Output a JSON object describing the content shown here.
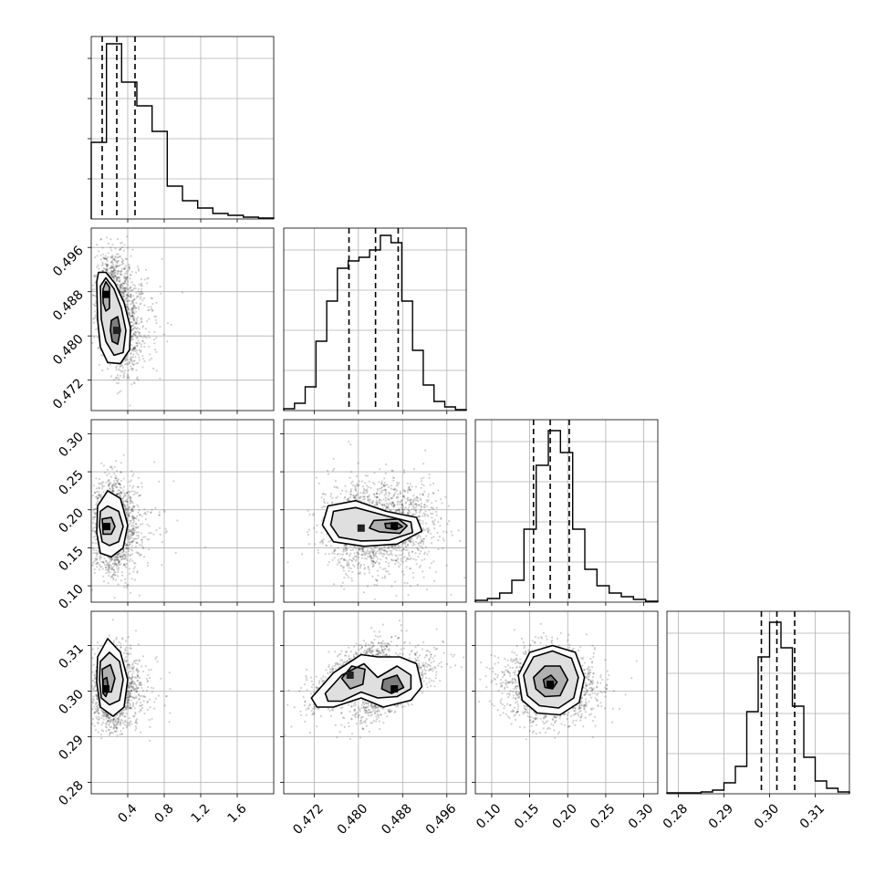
{
  "chart_data": {
    "type": "corner",
    "grid": true,
    "parameters": [
      {
        "ticks": [
          0.4,
          0.8,
          1.2,
          1.6
        ],
        "tick_labels": [
          "0.4",
          "0.8",
          "1.2",
          "1.6"
        ],
        "range": [
          0.0,
          2.0
        ],
        "quantiles": [
          0.12,
          0.28,
          0.48
        ],
        "hist": [
          0.42,
          0.96,
          0.75,
          0.62,
          0.48,
          0.18,
          0.1,
          0.06,
          0.03,
          0.02,
          0.01,
          0.005
        ]
      },
      {
        "ticks": [
          0.472,
          0.48,
          0.488,
          0.496
        ],
        "tick_labels": [
          "0.472",
          "0.480",
          "0.488",
          "0.496"
        ],
        "range": [
          0.4665,
          0.4995
        ],
        "quantiles": [
          0.4783,
          0.4831,
          0.4872
        ],
        "hist": [
          0.01,
          0.04,
          0.13,
          0.38,
          0.6,
          0.78,
          0.82,
          0.84,
          0.88,
          0.96,
          0.92,
          0.6,
          0.33,
          0.14,
          0.05,
          0.02,
          0.005
        ]
      },
      {
        "ticks": [
          0.1,
          0.15,
          0.2,
          0.25,
          0.3
        ],
        "tick_labels": [
          "0.10",
          "0.15",
          "0.20",
          "0.25",
          "0.30"
        ],
        "range": [
          0.0785,
          0.3185
        ],
        "quantiles": [
          0.155,
          0.177,
          0.202
        ],
        "hist": [
          0.01,
          0.02,
          0.05,
          0.12,
          0.4,
          0.75,
          0.94,
          0.82,
          0.4,
          0.18,
          0.09,
          0.05,
          0.03,
          0.015,
          0.005
        ]
      },
      {
        "ticks": [
          0.28,
          0.29,
          0.3,
          0.31
        ],
        "tick_labels": [
          "0.28",
          "0.29",
          "0.30",
          "0.31"
        ],
        "range": [
          0.2775,
          0.3175
        ],
        "quantiles": [
          0.2982,
          0.3016,
          0.3055
        ],
        "hist": [
          0.005,
          0.005,
          0.005,
          0.01,
          0.02,
          0.06,
          0.15,
          0.45,
          0.75,
          0.94,
          0.8,
          0.48,
          0.2,
          0.07,
          0.03,
          0.01
        ]
      }
    ],
    "panels": [
      {
        "row": 1,
        "col": 0,
        "spread": [
          0.13,
          0.004
        ],
        "modes": [
          {
            "x": 0.16,
            "y": 0.4875,
            "w": 1.0
          },
          {
            "x": 0.28,
            "y": 0.481,
            "w": 0.65
          }
        ],
        "contours": [
          [
            [
              0.06,
              0.4898
            ],
            [
              0.08,
              0.4915
            ],
            [
              0.16,
              0.4915
            ],
            [
              0.26,
              0.4895
            ],
            [
              0.36,
              0.486
            ],
            [
              0.43,
              0.4815
            ],
            [
              0.42,
              0.4775
            ],
            [
              0.32,
              0.475
            ],
            [
              0.18,
              0.4752
            ],
            [
              0.1,
              0.478
            ],
            [
              0.07,
              0.483
            ]
          ],
          [
            [
              0.1,
              0.489
            ],
            [
              0.16,
              0.4905
            ],
            [
              0.25,
              0.4885
            ],
            [
              0.33,
              0.485
            ],
            [
              0.38,
              0.481
            ],
            [
              0.35,
              0.477
            ],
            [
              0.25,
              0.4765
            ],
            [
              0.16,
              0.479
            ],
            [
              0.11,
              0.483
            ]
          ],
          [
            [
              0.13,
              0.4885
            ],
            [
              0.16,
              0.4898
            ],
            [
              0.2,
              0.4888
            ],
            [
              0.2,
              0.485
            ],
            [
              0.16,
              0.4845
            ],
            [
              0.13,
              0.486
            ]
          ],
          [
            [
              0.22,
              0.4828
            ],
            [
              0.29,
              0.4835
            ],
            [
              0.32,
              0.481
            ],
            [
              0.29,
              0.4785
            ],
            [
              0.23,
              0.479
            ],
            [
              0.21,
              0.481
            ]
          ]
        ]
      },
      {
        "row": 2,
        "col": 0,
        "spread": [
          0.14,
          0.03
        ],
        "modes": [
          {
            "x": 0.17,
            "y": 0.178,
            "w": 1.0
          }
        ],
        "contours": [
          [
            [
              0.07,
              0.205
            ],
            [
              0.18,
              0.225
            ],
            [
              0.32,
              0.215
            ],
            [
              0.4,
              0.18
            ],
            [
              0.35,
              0.15
            ],
            [
              0.22,
              0.138
            ],
            [
              0.1,
              0.143
            ],
            [
              0.06,
              0.17
            ]
          ],
          [
            [
              0.1,
              0.198
            ],
            [
              0.18,
              0.205
            ],
            [
              0.3,
              0.198
            ],
            [
              0.35,
              0.178
            ],
            [
              0.3,
              0.158
            ],
            [
              0.2,
              0.153
            ],
            [
              0.12,
              0.158
            ],
            [
              0.09,
              0.178
            ]
          ],
          [
            [
              0.12,
              0.188
            ],
            [
              0.22,
              0.19
            ],
            [
              0.26,
              0.178
            ],
            [
              0.22,
              0.168
            ],
            [
              0.13,
              0.168
            ]
          ]
        ]
      },
      {
        "row": 2,
        "col": 1,
        "spread": [
          0.004,
          0.03
        ],
        "modes": [
          {
            "x": 0.4865,
            "y": 0.179,
            "w": 1.0
          },
          {
            "x": 0.4805,
            "y": 0.176,
            "w": 0.55
          }
        ],
        "contours": [
          [
            [
              0.4745,
              0.205
            ],
            [
              0.4795,
              0.212
            ],
            [
              0.485,
              0.198
            ],
            [
              0.4905,
              0.19
            ],
            [
              0.4915,
              0.172
            ],
            [
              0.487,
              0.155
            ],
            [
              0.481,
              0.152
            ],
            [
              0.4755,
              0.158
            ],
            [
              0.4735,
              0.18
            ]
          ],
          [
            [
              0.4755,
              0.198
            ],
            [
              0.4795,
              0.203
            ],
            [
              0.485,
              0.192
            ],
            [
              0.4895,
              0.184
            ],
            [
              0.4898,
              0.17
            ],
            [
              0.4855,
              0.16
            ],
            [
              0.4805,
              0.159
            ],
            [
              0.4765,
              0.164
            ],
            [
              0.475,
              0.18
            ]
          ],
          [
            [
              0.4828,
              0.186
            ],
            [
              0.4872,
              0.188
            ],
            [
              0.4888,
              0.179
            ],
            [
              0.4875,
              0.169
            ],
            [
              0.4838,
              0.171
            ],
            [
              0.482,
              0.176
            ]
          ],
          [
            [
              0.4848,
              0.182
            ],
            [
              0.487,
              0.183
            ],
            [
              0.488,
              0.178
            ],
            [
              0.4868,
              0.174
            ],
            [
              0.485,
              0.176
            ]
          ]
        ]
      },
      {
        "row": 3,
        "col": 0,
        "spread": [
          0.14,
          0.004
        ],
        "modes": [
          {
            "x": 0.16,
            "y": 0.3005,
            "w": 1.0
          }
        ],
        "contours": [
          [
            [
              0.07,
              0.3075
            ],
            [
              0.18,
              0.3115
            ],
            [
              0.32,
              0.3085
            ],
            [
              0.4,
              0.3025
            ],
            [
              0.36,
              0.2965
            ],
            [
              0.24,
              0.2945
            ],
            [
              0.1,
              0.2965
            ],
            [
              0.06,
              0.302
            ]
          ],
          [
            [
              0.1,
              0.3065
            ],
            [
              0.2,
              0.3085
            ],
            [
              0.31,
              0.3065
            ],
            [
              0.35,
              0.3025
            ],
            [
              0.31,
              0.298
            ],
            [
              0.2,
              0.297
            ],
            [
              0.11,
              0.2985
            ],
            [
              0.09,
              0.3025
            ]
          ],
          [
            [
              0.12,
              0.3048
            ],
            [
              0.21,
              0.3058
            ],
            [
              0.26,
              0.3028
            ],
            [
              0.22,
              0.2998
            ],
            [
              0.13,
              0.2998
            ]
          ],
          [
            [
              0.13,
              0.3025
            ],
            [
              0.17,
              0.303
            ],
            [
              0.19,
              0.3005
            ],
            [
              0.16,
              0.2988
            ],
            [
              0.13,
              0.2995
            ]
          ]
        ]
      },
      {
        "row": 3,
        "col": 1,
        "spread": [
          0.0038,
          0.0038
        ],
        "corr": 0.75,
        "modes": [
          {
            "x": 0.4865,
            "y": 0.3005,
            "w": 1.0
          },
          {
            "x": 0.4785,
            "y": 0.3035,
            "w": 0.8
          }
        ],
        "contours": [
          [
            [
              0.4715,
              0.2985
            ],
            [
              0.4755,
              0.304
            ],
            [
              0.4805,
              0.308
            ],
            [
              0.4835,
              0.3075
            ],
            [
              0.4875,
              0.3075
            ],
            [
              0.4905,
              0.306
            ],
            [
              0.4915,
              0.301
            ],
            [
              0.4895,
              0.298
            ],
            [
              0.4845,
              0.2965
            ],
            [
              0.4805,
              0.2985
            ],
            [
              0.4755,
              0.2965
            ],
            [
              0.4725,
              0.2965
            ]
          ],
          [
            [
              0.474,
              0.2995
            ],
            [
              0.477,
              0.3035
            ],
            [
              0.481,
              0.306
            ],
            [
              0.4835,
              0.303
            ],
            [
              0.487,
              0.3055
            ],
            [
              0.4895,
              0.3035
            ],
            [
              0.4895,
              0.3005
            ],
            [
              0.487,
              0.2988
            ],
            [
              0.4835,
              0.2985
            ],
            [
              0.4805,
              0.2998
            ],
            [
              0.477,
              0.2978
            ],
            [
              0.4745,
              0.2978
            ]
          ],
          [
            [
              0.477,
              0.3028
            ],
            [
              0.4788,
              0.3055
            ],
            [
              0.4812,
              0.3048
            ],
            [
              0.4808,
              0.3015
            ],
            [
              0.4785,
              0.3005
            ]
          ],
          [
            [
              0.4845,
              0.3025
            ],
            [
              0.487,
              0.3035
            ],
            [
              0.4882,
              0.3008
            ],
            [
              0.486,
              0.2995
            ],
            [
              0.4842,
              0.3005
            ]
          ]
        ]
      },
      {
        "row": 3,
        "col": 2,
        "spread": [
          0.03,
          0.004
        ],
        "modes": [
          {
            "x": 0.177,
            "y": 0.3015,
            "w": 1.0
          }
        ],
        "contours": [
          [
            [
              0.135,
              0.3035
            ],
            [
              0.15,
              0.3085
            ],
            [
              0.18,
              0.31
            ],
            [
              0.21,
              0.3085
            ],
            [
              0.222,
              0.303
            ],
            [
              0.215,
              0.2975
            ],
            [
              0.19,
              0.2948
            ],
            [
              0.16,
              0.2952
            ],
            [
              0.14,
              0.298
            ]
          ],
          [
            [
              0.142,
              0.3035
            ],
            [
              0.155,
              0.3075
            ],
            [
              0.18,
              0.3088
            ],
            [
              0.205,
              0.3072
            ],
            [
              0.214,
              0.303
            ],
            [
              0.208,
              0.2985
            ],
            [
              0.188,
              0.2963
            ],
            [
              0.163,
              0.2968
            ],
            [
              0.147,
              0.299
            ]
          ],
          [
            [
              0.155,
              0.303
            ],
            [
              0.17,
              0.3055
            ],
            [
              0.19,
              0.3055
            ],
            [
              0.2,
              0.3025
            ],
            [
              0.19,
              0.299
            ],
            [
              0.17,
              0.2988
            ],
            [
              0.158,
              0.3005
            ]
          ],
          [
            [
              0.168,
              0.3025
            ],
            [
              0.178,
              0.3035
            ],
            [
              0.186,
              0.302
            ],
            [
              0.18,
              0.3005
            ],
            [
              0.17,
              0.3008
            ]
          ]
        ]
      }
    ]
  }
}
